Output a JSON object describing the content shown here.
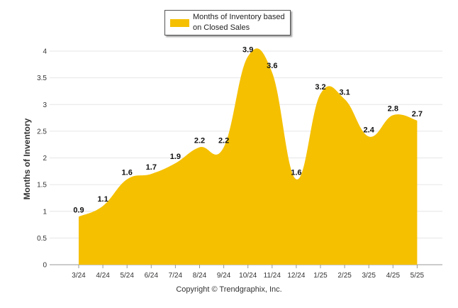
{
  "chart_data": {
    "type": "area",
    "ylabel": "Months of Inventory",
    "xlabel": "",
    "title": "",
    "categories": [
      "3/24",
      "4/24",
      "5/24",
      "6/24",
      "7/24",
      "8/24",
      "9/24",
      "10/24",
      "11/24",
      "12/24",
      "1/25",
      "2/25",
      "3/25",
      "4/25",
      "5/25"
    ],
    "series": [
      {
        "name": "Months of Inventory based on Closed Sales",
        "color": "#f5c000",
        "values": [
          0.9,
          1.1,
          1.6,
          1.7,
          1.9,
          2.2,
          2.2,
          3.9,
          3.6,
          1.6,
          3.2,
          3.1,
          2.4,
          2.8,
          2.7
        ]
      }
    ],
    "ylim": [
      0,
      4
    ],
    "yticks": [
      "0",
      "0.5",
      "1",
      "1.5",
      "2",
      "2.5",
      "3",
      "3.5",
      "4"
    ],
    "grid": true,
    "legend": "top-center"
  },
  "legend": {
    "label": "Months of Inventory based on Closed Sales"
  },
  "footer": {
    "copyright": "Copyright © Trendgraphix, Inc."
  }
}
